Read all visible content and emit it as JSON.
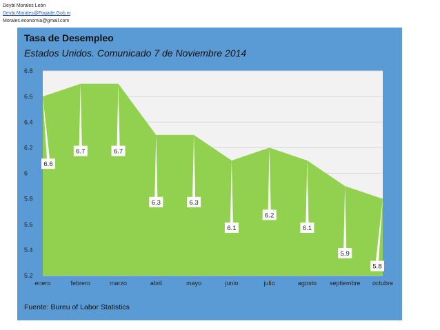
{
  "header": {
    "author": "Deybi Morales León",
    "email_link": "Deybi.Morales@Fogade.Gob.ni",
    "email_alt": "Morales.economia@gmail.com"
  },
  "colors": {
    "panel_bg": "#5b9bd5",
    "plot_bg": "#f2f2f2",
    "area_fill": "#92d050",
    "grid": "#d9d9d9",
    "label_bg": "#ffffff"
  },
  "chart_data": {
    "type": "area",
    "title": "Tasa de Desempleo",
    "subtitle": "Estados Unidos. Comunicado 7 de Noviembre 2014",
    "categories": [
      "enero",
      "febrero",
      "marzo",
      "abril",
      "mayo",
      "junio",
      "julio",
      "agosto",
      "septiembre",
      "octubre"
    ],
    "series": [
      {
        "values": [
          6.6,
          6.7,
          6.7,
          6.3,
          6.3,
          6.1,
          6.2,
          6.1,
          5.9,
          5.8
        ]
      }
    ],
    "data_labels": [
      "6.6",
      "6.7",
      "6.7",
      "6.3",
      "6.3",
      "6.1",
      "6.2",
      "6.1",
      "5.9",
      "5.8"
    ],
    "ylim": [
      5.2,
      6.8
    ],
    "y_ticks": [
      "5.2",
      "5.4",
      "5.6",
      "5.8",
      "6",
      "6.2",
      "6.4",
      "6.6",
      "6.8"
    ],
    "grid": true,
    "legend": "none"
  },
  "source": "Fuente: Bureu of Labor Statistics"
}
